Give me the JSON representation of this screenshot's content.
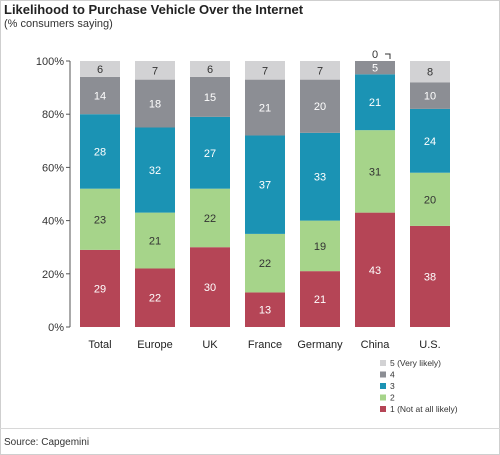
{
  "header": {
    "title": "Likelihood to Purchase Vehicle Over the Internet",
    "subtitle": "(% consumers saying)"
  },
  "footer": {
    "source": "Source: Capgemini"
  },
  "colors": {
    "s5": "#d2d2d4",
    "s4": "#8c8e94",
    "s3": "#1b93b4",
    "s2": "#a6d48a",
    "s1": "#b54556"
  },
  "chart_data": {
    "type": "bar",
    "stacked": true,
    "title": "Likelihood to Purchase Vehicle Over the Internet",
    "subtitle": "(% consumers saying)",
    "xlabel": "",
    "ylabel": "",
    "ylim": [
      0,
      100
    ],
    "y_ticks": [
      "0%",
      "20%",
      "40%",
      "60%",
      "80%",
      "100%"
    ],
    "grid": false,
    "legend_position": "bottom-right",
    "categories": [
      "Total",
      "Europe",
      "UK",
      "France",
      "Germany",
      "China",
      "U.S."
    ],
    "series": [
      {
        "name": "1 (Not at all likely)",
        "color_key": "s1",
        "values": [
          29,
          22,
          30,
          13,
          21,
          43,
          38
        ]
      },
      {
        "name": "2",
        "color_key": "s2",
        "values": [
          23,
          21,
          22,
          22,
          19,
          31,
          20
        ]
      },
      {
        "name": "3",
        "color_key": "s3",
        "values": [
          28,
          32,
          27,
          37,
          33,
          21,
          24
        ]
      },
      {
        "name": "4",
        "color_key": "s4",
        "values": [
          14,
          18,
          15,
          21,
          20,
          5,
          10
        ]
      },
      {
        "name": "5 (Very likely)",
        "color_key": "s5",
        "values": [
          6,
          7,
          6,
          7,
          7,
          0,
          8
        ]
      }
    ],
    "legend_order": [
      "5 (Very likely)",
      "4",
      "3",
      "2",
      "1 (Not at all likely)"
    ]
  }
}
